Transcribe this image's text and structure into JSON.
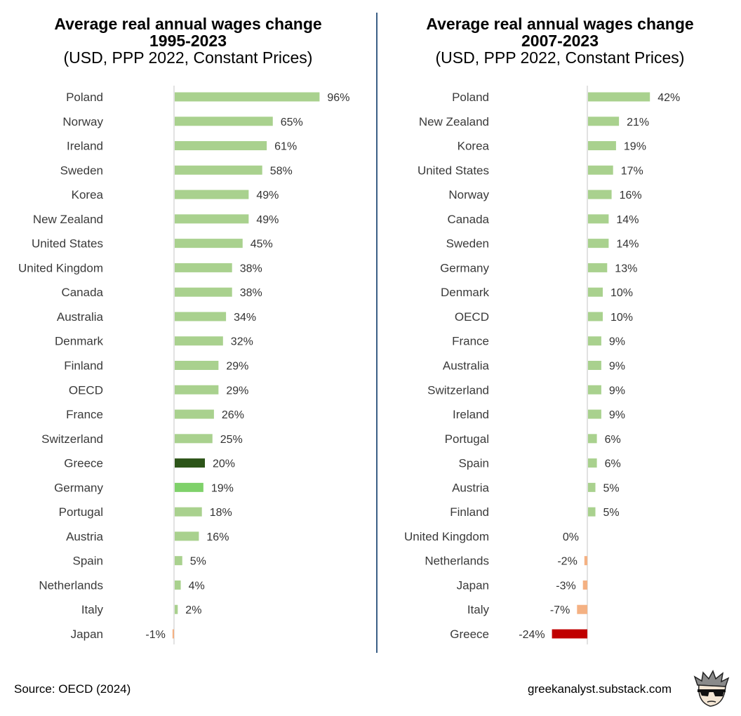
{
  "chart_data": [
    {
      "type": "bar",
      "orientation": "horizontal",
      "title": "Average real annual wages change",
      "title_line2": "1995-2023",
      "subtitle": "(USD, PPP 2022, Constant Prices)",
      "categories": [
        "Poland",
        "Norway",
        "Ireland",
        "Sweden",
        "Korea",
        "New Zealand",
        "United States",
        "United Kingdom",
        "Canada",
        "Australia",
        "Denmark",
        "Finland",
        "OECD",
        "France",
        "Switzerland",
        "Greece",
        "Germany",
        "Portugal",
        "Austria",
        "Spain",
        "Netherlands",
        "Italy",
        "Japan"
      ],
      "values": [
        96,
        65,
        61,
        58,
        49,
        49,
        45,
        38,
        38,
        34,
        32,
        29,
        29,
        26,
        25,
        20,
        19,
        18,
        16,
        5,
        4,
        2,
        -1
      ],
      "value_labels": [
        "96%",
        "65%",
        "61%",
        "58%",
        "49%",
        "49%",
        "45%",
        "38%",
        "38%",
        "34%",
        "32%",
        "29%",
        "29%",
        "26%",
        "25%",
        "20%",
        "19%",
        "18%",
        "16%",
        "5%",
        "4%",
        "2%",
        "-1%"
      ],
      "colors": [
        "#a9d18e",
        "#a9d18e",
        "#a9d18e",
        "#a9d18e",
        "#a9d18e",
        "#a9d18e",
        "#a9d18e",
        "#a9d18e",
        "#a9d18e",
        "#a9d18e",
        "#a9d18e",
        "#a9d18e",
        "#a9d18e",
        "#a9d18e",
        "#a9d18e",
        "#2c5418",
        "#7fd16a",
        "#a9d18e",
        "#a9d18e",
        "#a9d18e",
        "#a9d18e",
        "#a9d18e",
        "#f4b183"
      ],
      "xlim": [
        -1,
        96
      ]
    },
    {
      "type": "bar",
      "orientation": "horizontal",
      "title": "Average real annual wages change",
      "title_line2": "2007-2023",
      "subtitle": "(USD, PPP 2022, Constant Prices)",
      "categories": [
        "Poland",
        "New Zealand",
        "Korea",
        "United States",
        "Norway",
        "Canada",
        "Sweden",
        "Germany",
        "Denmark",
        "OECD",
        "France",
        "Australia",
        "Switzerland",
        "Ireland",
        "Portugal",
        "Spain",
        "Austria",
        "Finland",
        "United Kingdom",
        "Netherlands",
        "Japan",
        "Italy",
        "Greece"
      ],
      "values": [
        42,
        21,
        19,
        17,
        16,
        14,
        14,
        13,
        10,
        10,
        9,
        9,
        9,
        9,
        6,
        6,
        5,
        5,
        0,
        -2,
        -3,
        -7,
        -24
      ],
      "value_labels": [
        "42%",
        "21%",
        "19%",
        "17%",
        "16%",
        "14%",
        "14%",
        "13%",
        "10%",
        "10%",
        "9%",
        "9%",
        "9%",
        "9%",
        "6%",
        "6%",
        "5%",
        "5%",
        "0%",
        "-2%",
        "-3%",
        "-7%",
        "-24%"
      ],
      "colors": [
        "#a9d18e",
        "#a9d18e",
        "#a9d18e",
        "#a9d18e",
        "#a9d18e",
        "#a9d18e",
        "#a9d18e",
        "#a9d18e",
        "#a9d18e",
        "#a9d18e",
        "#a9d18e",
        "#a9d18e",
        "#a9d18e",
        "#a9d18e",
        "#a9d18e",
        "#a9d18e",
        "#a9d18e",
        "#a9d18e",
        "#a9d18e",
        "#f4b183",
        "#f4b183",
        "#f4b183",
        "#c00000"
      ],
      "xlim": [
        -24,
        42
      ]
    }
  ],
  "footer": {
    "source": "Source: OECD (2024)",
    "site": "greekanalyst.substack.com"
  },
  "logo_icon": "cartoon-avatar-sunglasses-icon"
}
